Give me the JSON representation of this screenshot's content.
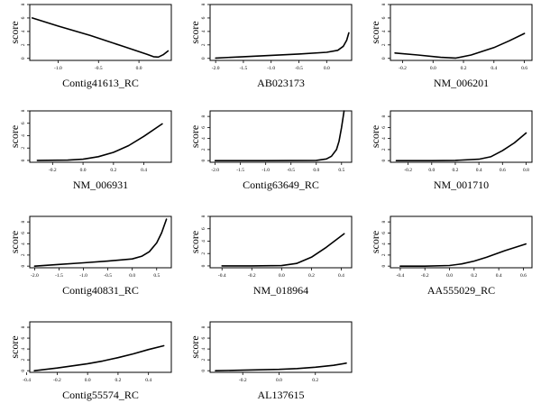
{
  "ylabel": "score",
  "chart_data": [
    {
      "type": "line",
      "xlabel": "Contig41613_RC",
      "xlim": [
        -1.35,
        0.4
      ],
      "ylim": [
        -0.3,
        8
      ],
      "xticks": [
        {
          "v": -1.0,
          "t": "-1.0"
        },
        {
          "v": -0.5,
          "t": "-0.5"
        },
        {
          "v": 0.0,
          "t": "0.0"
        }
      ],
      "yticks": [
        {
          "v": 0,
          "t": "0"
        },
        {
          "v": 2,
          "t": "2"
        },
        {
          "v": 4,
          "t": "4"
        },
        {
          "v": 6,
          "t": "6"
        },
        {
          "v": 8,
          "t": "8"
        }
      ],
      "x": [
        -1.32,
        -1.0,
        -0.6,
        -0.2,
        0.1,
        0.18,
        0.24,
        0.3,
        0.36
      ],
      "y": [
        6.0,
        4.8,
        3.4,
        1.8,
        0.6,
        0.25,
        0.2,
        0.55,
        1.1
      ]
    },
    {
      "type": "line",
      "xlabel": "AB023173",
      "xlim": [
        -2.1,
        0.45
      ],
      "ylim": [
        -0.3,
        8
      ],
      "xticks": [
        {
          "v": -2.0,
          "t": "-2.0"
        },
        {
          "v": -1.5,
          "t": "-1.5"
        },
        {
          "v": -1.0,
          "t": "-1.0"
        },
        {
          "v": -0.5,
          "t": "-0.5"
        },
        {
          "v": 0.0,
          "t": "0.0"
        }
      ],
      "yticks": [
        {
          "v": 0,
          "t": "0"
        },
        {
          "v": 2,
          "t": "2"
        },
        {
          "v": 4,
          "t": "4"
        },
        {
          "v": 6,
          "t": "6"
        },
        {
          "v": 8,
          "t": "8"
        }
      ],
      "x": [
        -2.0,
        -1.5,
        -1.0,
        -0.5,
        0.0,
        0.2,
        0.3,
        0.36,
        0.4
      ],
      "y": [
        0.05,
        0.25,
        0.45,
        0.65,
        0.9,
        1.2,
        1.8,
        2.7,
        3.8
      ]
    },
    {
      "type": "line",
      "xlabel": "NM_006201",
      "xlim": [
        -0.28,
        0.65
      ],
      "ylim": [
        -0.3,
        8
      ],
      "xticks": [
        {
          "v": -0.2,
          "t": "-0.2"
        },
        {
          "v": 0.0,
          "t": "0.0"
        },
        {
          "v": 0.2,
          "t": "0.2"
        },
        {
          "v": 0.4,
          "t": "0.4"
        },
        {
          "v": 0.6,
          "t": "0.6"
        }
      ],
      "yticks": [
        {
          "v": 0,
          "t": "0"
        },
        {
          "v": 2,
          "t": "2"
        },
        {
          "v": 4,
          "t": "4"
        },
        {
          "v": 6,
          "t": "6"
        },
        {
          "v": 8,
          "t": "8"
        }
      ],
      "x": [
        -0.25,
        -0.1,
        0.05,
        0.15,
        0.25,
        0.4,
        0.5,
        0.6
      ],
      "y": [
        0.8,
        0.5,
        0.15,
        0.05,
        0.5,
        1.6,
        2.6,
        3.7
      ]
    },
    {
      "type": "line",
      "xlabel": "NM_006931",
      "xlim": [
        -0.35,
        0.58
      ],
      "ylim": [
        -0.3,
        8
      ],
      "xticks": [
        {
          "v": -0.2,
          "t": "-0.2"
        },
        {
          "v": 0.0,
          "t": "0.0"
        },
        {
          "v": 0.2,
          "t": "0.2"
        },
        {
          "v": 0.4,
          "t": "0.4"
        }
      ],
      "yticks": [
        {
          "v": 0,
          "t": "0"
        },
        {
          "v": 2,
          "t": "2"
        },
        {
          "v": 4,
          "t": "4"
        },
        {
          "v": 6,
          "t": "6"
        },
        {
          "v": 8,
          "t": "8"
        }
      ],
      "x": [
        -0.3,
        -0.1,
        0.0,
        0.1,
        0.2,
        0.3,
        0.4,
        0.52
      ],
      "y": [
        0.0,
        0.05,
        0.2,
        0.6,
        1.3,
        2.4,
        3.9,
        5.9
      ]
    },
    {
      "type": "line",
      "xlabel": "Contig63649_RC",
      "xlim": [
        -2.1,
        0.7
      ],
      "ylim": [
        -0.3,
        9
      ],
      "xticks": [
        {
          "v": -2.0,
          "t": "-2.0"
        },
        {
          "v": -1.5,
          "t": "-1.5"
        },
        {
          "v": -1.0,
          "t": "-1.0"
        },
        {
          "v": -0.5,
          "t": "-0.5"
        },
        {
          "v": 0.0,
          "t": "0.0"
        },
        {
          "v": 0.5,
          "t": "0.5"
        }
      ],
      "yticks": [
        {
          "v": 0,
          "t": "0"
        },
        {
          "v": 2,
          "t": "2"
        },
        {
          "v": 4,
          "t": "4"
        },
        {
          "v": 6,
          "t": "6"
        },
        {
          "v": 8,
          "t": "8"
        }
      ],
      "x": [
        -2.0,
        -1.0,
        0.0,
        0.2,
        0.3,
        0.4,
        0.45,
        0.5,
        0.55
      ],
      "y": [
        0.0,
        0.0,
        0.05,
        0.3,
        0.8,
        2.0,
        3.5,
        6.0,
        9.0
      ]
    },
    {
      "type": "line",
      "xlabel": "NM_001710",
      "xlim": [
        -0.35,
        0.85
      ],
      "ylim": [
        -0.3,
        9
      ],
      "xticks": [
        {
          "v": -0.2,
          "t": "-0.2"
        },
        {
          "v": 0.0,
          "t": "0.0"
        },
        {
          "v": 0.2,
          "t": "0.2"
        },
        {
          "v": 0.4,
          "t": "0.4"
        },
        {
          "v": 0.6,
          "t": "0.6"
        },
        {
          "v": 0.8,
          "t": "0.8"
        }
      ],
      "yticks": [
        {
          "v": 0,
          "t": "0"
        },
        {
          "v": 2,
          "t": "2"
        },
        {
          "v": 4,
          "t": "4"
        },
        {
          "v": 6,
          "t": "6"
        },
        {
          "v": 8,
          "t": "8"
        }
      ],
      "x": [
        -0.3,
        0.0,
        0.2,
        0.4,
        0.5,
        0.6,
        0.7,
        0.8
      ],
      "y": [
        0.0,
        0.0,
        0.05,
        0.25,
        0.7,
        1.8,
        3.2,
        5.0
      ]
    },
    {
      "type": "line",
      "xlabel": "Contig40831_RC",
      "xlim": [
        -2.1,
        0.8
      ],
      "ylim": [
        -0.3,
        9
      ],
      "xticks": [
        {
          "v": -2.0,
          "t": "-2.0"
        },
        {
          "v": -1.5,
          "t": "-1.5"
        },
        {
          "v": -1.0,
          "t": "-1.0"
        },
        {
          "v": -0.5,
          "t": "-0.5"
        },
        {
          "v": 0.0,
          "t": "0.0"
        },
        {
          "v": 0.5,
          "t": "0.5"
        }
      ],
      "yticks": [
        {
          "v": 0,
          "t": "0"
        },
        {
          "v": 2,
          "t": "2"
        },
        {
          "v": 4,
          "t": "4"
        },
        {
          "v": 6,
          "t": "6"
        },
        {
          "v": 8,
          "t": "8"
        }
      ],
      "x": [
        -2.0,
        -1.5,
        -1.0,
        -0.5,
        0.0,
        0.2,
        0.35,
        0.5,
        0.6,
        0.7
      ],
      "y": [
        0.0,
        0.3,
        0.6,
        0.9,
        1.3,
        1.8,
        2.6,
        4.2,
        6.0,
        8.5
      ]
    },
    {
      "type": "line",
      "xlabel": "NM_018964",
      "xlim": [
        -0.48,
        0.47
      ],
      "ylim": [
        -0.3,
        8
      ],
      "xticks": [
        {
          "v": -0.4,
          "t": "-0.4"
        },
        {
          "v": -0.2,
          "t": "-0.2"
        },
        {
          "v": 0.0,
          "t": "0.0"
        },
        {
          "v": 0.2,
          "t": "0.2"
        },
        {
          "v": 0.4,
          "t": "0.4"
        }
      ],
      "yticks": [
        {
          "v": 0,
          "t": "0"
        },
        {
          "v": 2,
          "t": "2"
        },
        {
          "v": 4,
          "t": "4"
        },
        {
          "v": 6,
          "t": "6"
        },
        {
          "v": 8,
          "t": "8"
        }
      ],
      "x": [
        -0.4,
        -0.2,
        0.0,
        0.1,
        0.2,
        0.3,
        0.42
      ],
      "y": [
        0.0,
        0.0,
        0.05,
        0.4,
        1.4,
        3.0,
        5.2
      ]
    },
    {
      "type": "line",
      "xlabel": "AA555029_RC",
      "xlim": [
        -0.48,
        0.67
      ],
      "ylim": [
        -0.3,
        9
      ],
      "xticks": [
        {
          "v": -0.4,
          "t": "-0.4"
        },
        {
          "v": -0.2,
          "t": "-0.2"
        },
        {
          "v": 0.0,
          "t": "0.0"
        },
        {
          "v": 0.2,
          "t": "0.2"
        },
        {
          "v": 0.4,
          "t": "0.4"
        },
        {
          "v": 0.6,
          "t": "0.6"
        }
      ],
      "yticks": [
        {
          "v": 0,
          "t": "0"
        },
        {
          "v": 2,
          "t": "2"
        },
        {
          "v": 4,
          "t": "4"
        },
        {
          "v": 6,
          "t": "6"
        },
        {
          "v": 8,
          "t": "8"
        }
      ],
      "x": [
        -0.4,
        -0.2,
        0.0,
        0.1,
        0.2,
        0.3,
        0.45,
        0.62
      ],
      "y": [
        0.0,
        0.0,
        0.1,
        0.4,
        0.9,
        1.6,
        2.8,
        4.0
      ]
    },
    {
      "type": "line",
      "xlabel": "Contig55574_RC",
      "xlim": [
        -0.38,
        0.55
      ],
      "ylim": [
        -0.3,
        9
      ],
      "xticks": [
        {
          "v": -0.4,
          "t": "-0.4"
        },
        {
          "v": -0.2,
          "t": "-0.2"
        },
        {
          "v": 0.0,
          "t": "0.0"
        },
        {
          "v": 0.2,
          "t": "0.2"
        },
        {
          "v": 0.4,
          "t": "0.4"
        }
      ],
      "yticks": [
        {
          "v": 0,
          "t": "0"
        },
        {
          "v": 2,
          "t": "2"
        },
        {
          "v": 4,
          "t": "4"
        },
        {
          "v": 6,
          "t": "6"
        },
        {
          "v": 8,
          "t": "8"
        }
      ],
      "x": [
        -0.35,
        -0.2,
        0.0,
        0.1,
        0.2,
        0.3,
        0.4,
        0.5
      ],
      "y": [
        0.0,
        0.5,
        1.3,
        1.8,
        2.4,
        3.1,
        3.9,
        4.6
      ]
    },
    {
      "type": "line",
      "xlabel": "AL137615",
      "xlim": [
        -0.38,
        0.4
      ],
      "ylim": [
        -0.3,
        9
      ],
      "xticks": [
        {
          "v": -0.2,
          "t": "-0.2"
        },
        {
          "v": 0.0,
          "t": "0.0"
        },
        {
          "v": 0.2,
          "t": "0.2"
        }
      ],
      "yticks": [
        {
          "v": 0,
          "t": "0"
        },
        {
          "v": 2,
          "t": "2"
        },
        {
          "v": 4,
          "t": "4"
        },
        {
          "v": 6,
          "t": "6"
        },
        {
          "v": 8,
          "t": "8"
        }
      ],
      "x": [
        -0.35,
        -0.2,
        0.0,
        0.1,
        0.2,
        0.3,
        0.37
      ],
      "y": [
        0.0,
        0.1,
        0.25,
        0.4,
        0.65,
        1.0,
        1.4
      ]
    }
  ]
}
